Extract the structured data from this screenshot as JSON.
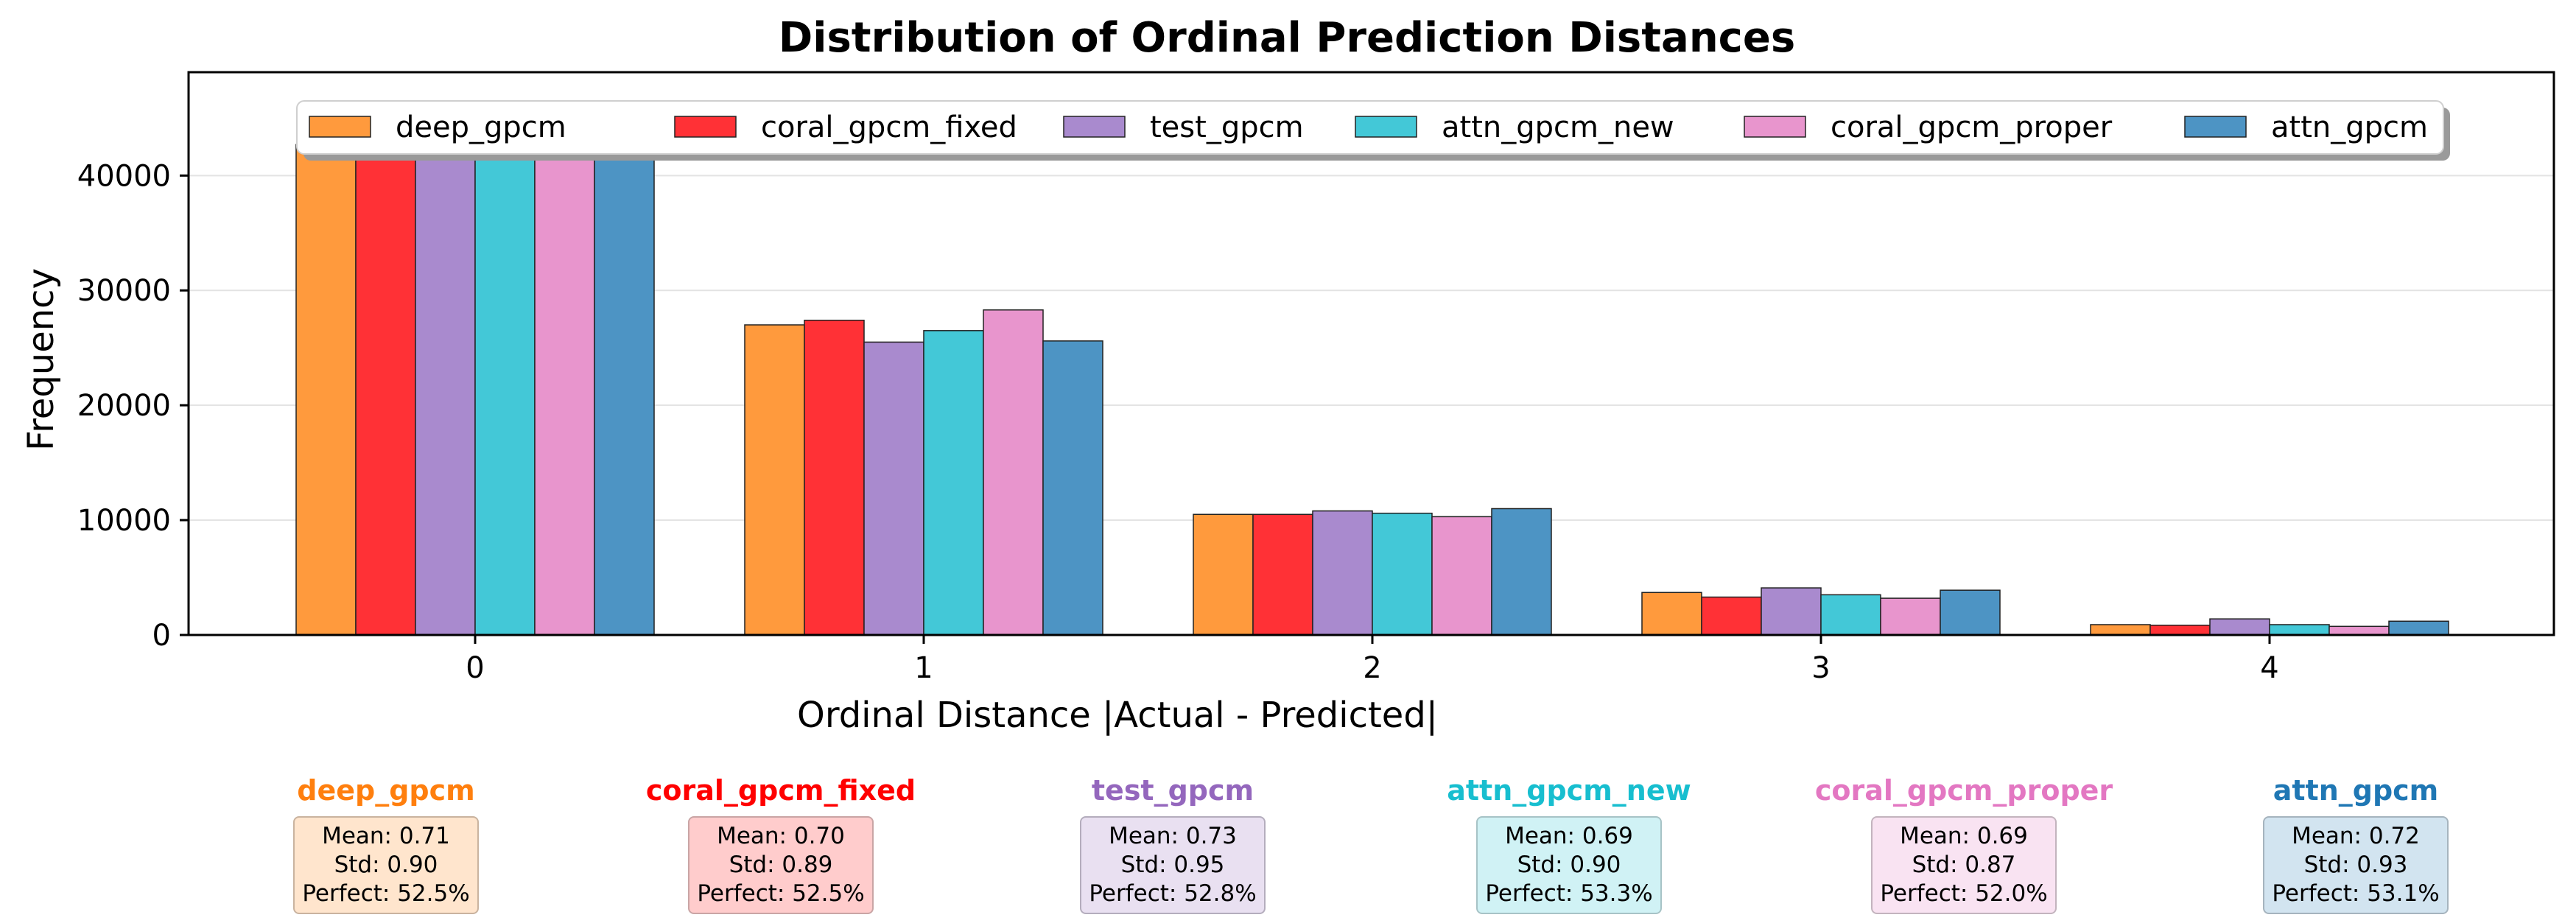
{
  "chart_data": {
    "type": "bar",
    "title": "Distribution of Ordinal Prediction Distances",
    "xlabel": "Ordinal Distance |Actual - Predicted|",
    "ylabel": "Frequency",
    "categories": [
      "0",
      "1",
      "2",
      "3",
      "4"
    ],
    "ylim": [
      0,
      49000
    ],
    "yticks": [
      0,
      10000,
      20000,
      30000,
      40000
    ],
    "ytick_labels": [
      "0",
      "10000",
      "20000",
      "30000",
      "40000"
    ],
    "grid": "y-axis, light",
    "legend_position": "top-center",
    "series": [
      {
        "name": "deep_gpcm",
        "color": "#ff9a3d",
        "values": [
          42700,
          27000,
          10500,
          3700,
          900
        ]
      },
      {
        "name": "coral_gpcm_fixed",
        "color": "#ff3136",
        "values": [
          42700,
          27400,
          10500,
          3300,
          850
        ]
      },
      {
        "name": "test_gpcm",
        "color": "#a98ace",
        "values": [
          42700,
          25500,
          10800,
          4100,
          1400
        ]
      },
      {
        "name": "attn_gpcm_new",
        "color": "#43c8d7",
        "values": [
          42700,
          26500,
          10600,
          3500,
          900
        ]
      },
      {
        "name": "coral_gpcm_proper",
        "color": "#e895cd",
        "values": [
          42700,
          28300,
          10300,
          3200,
          750
        ]
      },
      {
        "name": "attn_gpcm",
        "color": "#4d94c4",
        "values": [
          42700,
          25600,
          11000,
          3900,
          1200
        ]
      }
    ]
  },
  "stats": [
    {
      "name": "deep_gpcm",
      "title_color": "#ff7f0e",
      "box_fill": "#ffe5cd",
      "box_border": "#c9b39f",
      "mean": "Mean: 0.71",
      "std": "Std: 0.90",
      "perfect": "Perfect: 52.5%"
    },
    {
      "name": "coral_gpcm_fixed",
      "title_color": "#ff0000",
      "box_fill": "#ffcccc",
      "box_border": "#c9a5a5",
      "mean": "Mean: 0.70",
      "std": "Std: 0.89",
      "perfect": "Perfect: 52.5%"
    },
    {
      "name": "test_gpcm",
      "title_color": "#9467bd",
      "box_fill": "#e9e0f1",
      "box_border": "#b4adbd",
      "mean": "Mean: 0.73",
      "std": "Std: 0.95",
      "perfect": "Perfect: 52.8%"
    },
    {
      "name": "attn_gpcm_new",
      "title_color": "#17becf",
      "box_fill": "#d0f2f5",
      "box_border": "#a7c3c6",
      "mean": "Mean: 0.69",
      "std": "Std: 0.90",
      "perfect": "Perfect: 53.3%"
    },
    {
      "name": "coral_gpcm_proper",
      "title_color": "#e377c2",
      "box_fill": "#f9e3f2",
      "box_border": "#c3b4be",
      "mean": "Mean: 0.69",
      "std": "Std: 0.87",
      "perfect": "Perfect: 52.0%"
    },
    {
      "name": "attn_gpcm",
      "title_color": "#1f77b4",
      "box_fill": "#d2e4f0",
      "box_border": "#a6b4be",
      "mean": "Mean: 0.72",
      "std": "Std: 0.93",
      "perfect": "Perfect: 53.1%"
    }
  ]
}
